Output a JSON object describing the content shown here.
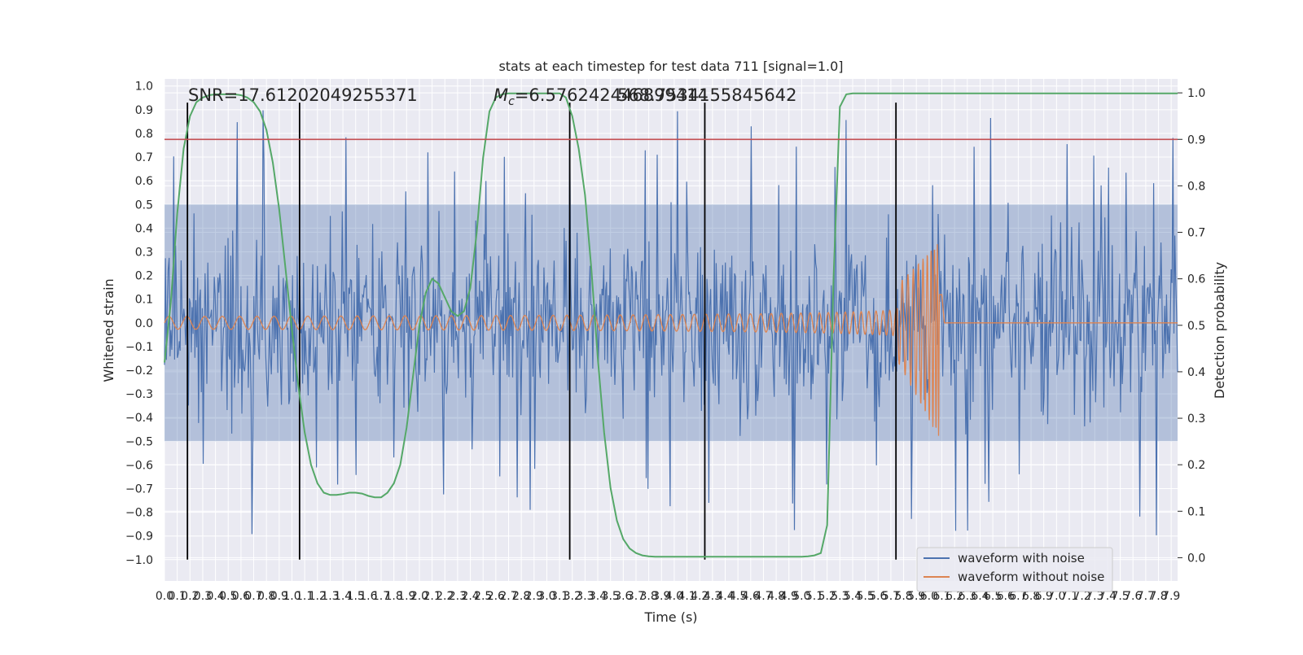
{
  "chart_data": {
    "type": "line",
    "title": "stats at each timestep for test data 711 [signal=1.0]",
    "xlabel": "Time (s)",
    "ylabel_left": "Whitened strain",
    "ylabel_right": "Detection probability",
    "xlim": [
      0.0,
      7.95
    ],
    "ylim_left": [
      -1.09,
      1.03
    ],
    "ylim_right": [
      -0.05,
      1.03
    ],
    "x_ticks": [
      0.0,
      0.1,
      0.2,
      0.3,
      0.4,
      0.5,
      0.6,
      0.7,
      0.8,
      0.9,
      1.0,
      1.1,
      1.2,
      1.3,
      1.4,
      1.5,
      1.6,
      1.7,
      1.8,
      1.9,
      2.0,
      2.1,
      2.2,
      2.3,
      2.4,
      2.5,
      2.6,
      2.7,
      2.8,
      2.9,
      3.0,
      3.1,
      3.2,
      3.3,
      3.4,
      3.5,
      3.6,
      3.7,
      3.8,
      3.9,
      4.0,
      4.1,
      4.2,
      4.3,
      4.4,
      4.5,
      4.6,
      4.7,
      4.8,
      4.9,
      5.0,
      5.1,
      5.2,
      5.3,
      5.4,
      5.5,
      5.6,
      5.7,
      5.8,
      5.9,
      6.0,
      6.1,
      6.2,
      6.3,
      6.4,
      6.5,
      6.6,
      6.7,
      6.8,
      6.9,
      7.0,
      7.1,
      7.2,
      7.3,
      7.4,
      7.5,
      7.6,
      7.7,
      7.8,
      7.9
    ],
    "y_ticks_left": [
      -1.0,
      -0.9,
      -0.8,
      -0.7,
      -0.6,
      -0.5,
      -0.4,
      -0.3,
      -0.2,
      -0.1,
      0.0,
      0.1,
      0.2,
      0.3,
      0.4,
      0.5,
      0.6,
      0.7,
      0.8,
      0.9,
      1.0
    ],
    "y_ticks_right": [
      0.0,
      0.1,
      0.2,
      0.3,
      0.4,
      0.5,
      0.6,
      0.7,
      0.8,
      0.9,
      1.0
    ],
    "grid": true,
    "legend_position": "bottom-right",
    "annotations": {
      "snr": "SNR=17.61202049255371",
      "mc_prefix": "M",
      "mc_sub": "c",
      "mc_value": "=6.576242446899414",
      "overlap_text": "568.7534155845642"
    },
    "series": [
      {
        "name": "waveform with noise",
        "color": "#4c72b0",
        "kind": "noise",
        "amplitude_band": [
          -0.5,
          0.5
        ],
        "peak_envelope": [
          -0.93,
          0.92
        ]
      },
      {
        "name": "waveform without noise",
        "color": "#dd8452",
        "kind": "chirp",
        "start_amplitude": 0.03,
        "peak_amplitude_top": 0.34,
        "peak_amplitude_bottom": -0.5,
        "merger_time": 6.1
      },
      {
        "color": "#55a868",
        "axis": "right",
        "x": [
          0.0,
          0.05,
          0.1,
          0.15,
          0.2,
          0.25,
          0.3,
          0.35,
          0.4,
          0.45,
          0.5,
          0.55,
          0.6,
          0.65,
          0.7,
          0.75,
          0.8,
          0.85,
          0.9,
          0.95,
          1.0,
          1.05,
          1.1,
          1.15,
          1.2,
          1.25,
          1.3,
          1.35,
          1.4,
          1.45,
          1.5,
          1.55,
          1.6,
          1.65,
          1.7,
          1.75,
          1.8,
          1.85,
          1.9,
          1.95,
          2.0,
          2.05,
          2.1,
          2.15,
          2.2,
          2.25,
          2.3,
          2.35,
          2.4,
          2.45,
          2.5,
          2.55,
          2.6,
          2.65,
          2.7,
          2.75,
          2.8,
          2.85,
          2.9,
          2.95,
          3.0,
          3.05,
          3.1,
          3.15,
          3.2,
          3.25,
          3.3,
          3.35,
          3.4,
          3.45,
          3.5,
          3.55,
          3.6,
          3.65,
          3.7,
          3.75,
          3.8,
          3.85,
          3.9,
          3.95,
          4.0,
          4.05,
          4.1,
          4.15,
          4.2,
          4.25,
          4.3,
          4.35,
          4.4,
          4.45,
          4.5,
          4.55,
          4.6,
          4.65,
          4.7,
          4.75,
          4.8,
          4.85,
          4.9,
          4.95,
          5.0,
          5.05,
          5.1,
          5.15,
          5.2,
          5.25,
          5.3,
          5.35,
          5.4,
          5.45,
          5.5,
          5.55,
          5.6,
          5.65,
          5.7,
          5.75,
          5.8,
          5.85,
          5.9,
          5.95,
          6.0,
          6.5,
          7.0,
          7.5,
          7.95
        ],
        "y": [
          0.42,
          0.55,
          0.74,
          0.88,
          0.95,
          0.98,
          0.99,
          0.995,
          0.997,
          0.997,
          0.997,
          0.997,
          0.995,
          0.99,
          0.98,
          0.96,
          0.92,
          0.85,
          0.75,
          0.62,
          0.49,
          0.37,
          0.27,
          0.2,
          0.16,
          0.14,
          0.135,
          0.135,
          0.137,
          0.14,
          0.14,
          0.138,
          0.133,
          0.13,
          0.13,
          0.14,
          0.16,
          0.2,
          0.28,
          0.39,
          0.5,
          0.57,
          0.6,
          0.59,
          0.56,
          0.53,
          0.52,
          0.53,
          0.58,
          0.7,
          0.86,
          0.96,
          0.99,
          0.997,
          0.999,
          0.999,
          0.999,
          0.999,
          0.999,
          0.999,
          0.999,
          0.999,
          0.999,
          0.99,
          0.95,
          0.88,
          0.78,
          0.62,
          0.43,
          0.27,
          0.15,
          0.08,
          0.04,
          0.02,
          0.01,
          0.005,
          0.003,
          0.002,
          0.002,
          0.002,
          0.002,
          0.002,
          0.002,
          0.002,
          0.002,
          0.002,
          0.002,
          0.002,
          0.002,
          0.002,
          0.002,
          0.002,
          0.002,
          0.002,
          0.002,
          0.002,
          0.002,
          0.002,
          0.002,
          0.002,
          0.002,
          0.003,
          0.005,
          0.01,
          0.07,
          0.6,
          0.97,
          0.997,
          0.999,
          0.999,
          0.999,
          0.999,
          0.999,
          0.999,
          0.999,
          0.999,
          0.999,
          0.999,
          0.999,
          0.999,
          0.999,
          0.999,
          0.999,
          0.999,
          0.999
        ]
      },
      {
        "color": "#c44e52",
        "axis": "right",
        "kind": "threshold",
        "value": 0.9
      }
    ],
    "detection_lines_x": [
      0.18,
      1.06,
      3.18,
      4.24,
      5.74
    ]
  }
}
